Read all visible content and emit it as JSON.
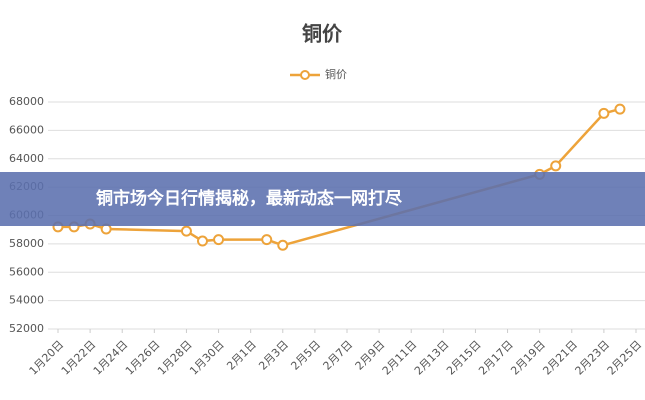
{
  "chart_data": {
    "type": "line",
    "title": "铜价",
    "x": [
      "1月20日",
      "1月21日",
      "1月22日",
      "1月23日",
      "1月28日",
      "1月29日",
      "1月30日",
      "2月2日",
      "2月3日",
      "2月19日",
      "2月20日",
      "2月23日",
      "2月24日"
    ],
    "series": [
      {
        "name": "铜价",
        "color": "#eda33a",
        "values": [
          59200,
          59200,
          59400,
          59050,
          58900,
          58200,
          58300,
          58300,
          57900,
          62900,
          63500,
          67200,
          67500
        ]
      }
    ],
    "xlim": [
      "1月20日",
      "2月25日"
    ],
    "xticks": [
      "1月20日",
      "1月22日",
      "1月24日",
      "1月26日",
      "1月28日",
      "1月30日",
      "2月1日",
      "2月3日",
      "2月5日",
      "2月7日",
      "2月9日",
      "2月11日",
      "2月13日",
      "2月15日",
      "2月17日",
      "2月19日",
      "2月21日",
      "2月23日",
      "2月25日"
    ],
    "ylim": [
      52000,
      68000
    ],
    "yticks": [
      52000,
      54000,
      56000,
      58000,
      60000,
      62000,
      64000,
      66000,
      68000
    ],
    "grid": true,
    "legend": "top"
  },
  "banner": "铜市场今日行情揭秘，最新动态一网打尽"
}
